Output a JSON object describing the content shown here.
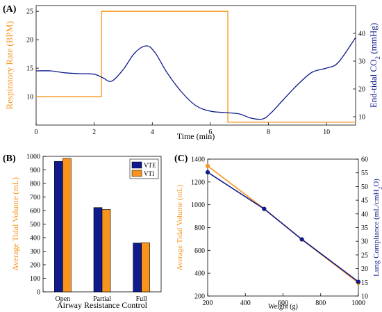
{
  "colors": {
    "orange": "#F7941D",
    "navy": "#0F1B8C",
    "black": "#000000"
  },
  "chart_data": [
    {
      "panel_label": "(A)",
      "type": "line",
      "xlabel": "Time (min)",
      "ylabel_left": "Respiratory Rate (BPM)",
      "ylabel_right_parts": [
        "End-tidal CO",
        "2",
        " (mmHg)"
      ],
      "xlim": [
        0,
        11
      ],
      "ylim_left": [
        5,
        26
      ],
      "ylim_right": [
        7,
        50
      ],
      "xticks": [
        0,
        2,
        4,
        6,
        8,
        10
      ],
      "yticks_left": [
        10,
        15,
        20,
        25
      ],
      "yticks_right": [
        10,
        20,
        30,
        40
      ],
      "series": [
        {
          "axis": "left",
          "color": "orange",
          "step": true,
          "x": [
            0,
            2.25,
            2.25,
            6.6,
            6.6,
            11
          ],
          "y": [
            10,
            10,
            25,
            25,
            5.5,
            5.5
          ]
        },
        {
          "axis": "right",
          "color": "navy",
          "step": false,
          "x": [
            0,
            0.5,
            1,
            1.5,
            2,
            2.3,
            2.6,
            3,
            3.4,
            3.8,
            4.1,
            4.5,
            5,
            5.5,
            6,
            6.5,
            7,
            7.4,
            7.8,
            8.1,
            8.5,
            9,
            9.5,
            10,
            10.4,
            11
          ],
          "y": [
            26.5,
            26.5,
            25.8,
            25.5,
            25.3,
            24,
            22.8,
            27,
            33,
            35.5,
            33,
            26,
            19,
            14,
            12,
            11.5,
            11,
            9.5,
            9.2,
            11.5,
            16,
            21.5,
            26,
            27.5,
            29.5,
            38.5
          ]
        }
      ]
    },
    {
      "panel_label": "(B)",
      "type": "bar",
      "xlabel": "Airway Resistance Control",
      "ylabel": "Average Tidal Volume (mL)",
      "ylim": [
        0,
        1000
      ],
      "yticks": [
        0,
        100,
        200,
        300,
        400,
        500,
        600,
        700,
        800,
        900,
        1000
      ],
      "categories": [
        "Open",
        "Partial",
        "Full"
      ],
      "legend_position": "top-right",
      "series": [
        {
          "name": "VTE",
          "color": "navy",
          "values": [
            963,
            622,
            360
          ]
        },
        {
          "name": "VTI",
          "color": "orange",
          "values": [
            985,
            608,
            362
          ]
        }
      ]
    },
    {
      "panel_label": "(C)",
      "type": "line",
      "xlabel": "Weight (g)",
      "ylabel_left": "Average Tidal Volume (mL)",
      "ylabel_right_parts": [
        "Lung Compliance (mL/cmH",
        "2",
        "O)"
      ],
      "xlim": [
        200,
        1000
      ],
      "ylim_left": [
        200,
        1400
      ],
      "ylim_right": [
        10,
        60
      ],
      "xticks": [
        200,
        400,
        600,
        800,
        1000
      ],
      "yticks_left": [
        200,
        400,
        600,
        800,
        1000,
        1200,
        1400
      ],
      "yticks_right": [
        10,
        15,
        20,
        25,
        30,
        35,
        40,
        45,
        50,
        55,
        60
      ],
      "series": [
        {
          "axis": "left",
          "color": "orange",
          "x": [
            200,
            500,
            700,
            1000
          ],
          "y": [
            1340,
            965,
            695,
            315
          ]
        },
        {
          "axis": "right",
          "color": "navy",
          "x": [
            200,
            500,
            700,
            1000
          ],
          "y": [
            55.2,
            41.8,
            30.7,
            15.2
          ]
        }
      ]
    }
  ]
}
